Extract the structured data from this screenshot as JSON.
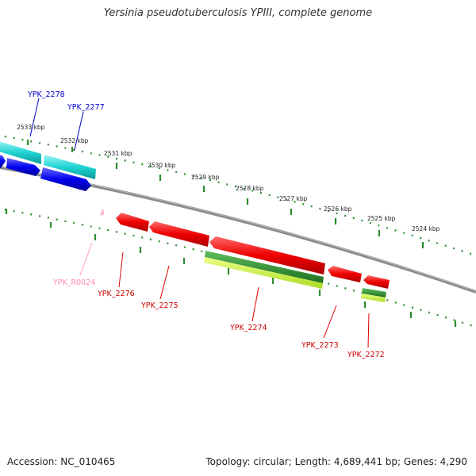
{
  "title": "Yersinia pseudotuberculosis YPIII, complete genome",
  "footer": {
    "accession": "Accession: NC_010465",
    "summary": "Topology: circular; Length: 4,689,441 bp; Genes: 4,290"
  },
  "colors": {
    "backbone": "#888888",
    "ticks": "#2e8b2e",
    "cds_forward_top": "#00c8c8",
    "cds_forward_bottom": "#0000ee",
    "cds_reverse": "#ee0000",
    "rna": "#ffaacc",
    "feature_green_dark": "#227722",
    "feature_green_light": "#ccff44"
  },
  "scale_labels": [
    "2533 kbp",
    "2532 kbp",
    "2531 kbp",
    "2530 kbp",
    "2529 kbp",
    "2528 kbp",
    "2527 kbp",
    "2526 kbp",
    "2525 kbp",
    "2524 kbp"
  ],
  "genes": [
    {
      "id": "YPK_2278",
      "color": "#0000cc"
    },
    {
      "id": "YPK_2277",
      "color": "#0000cc"
    },
    {
      "id": "YPK_R0024",
      "color": "#ff88bb"
    },
    {
      "id": "YPK_2276",
      "color": "#cc0000"
    },
    {
      "id": "YPK_2275",
      "color": "#cc0000"
    },
    {
      "id": "YPK_2274",
      "color": "#cc0000"
    },
    {
      "id": "YPK_2273",
      "color": "#cc0000"
    },
    {
      "id": "YPK_2272",
      "color": "#cc0000"
    }
  ]
}
